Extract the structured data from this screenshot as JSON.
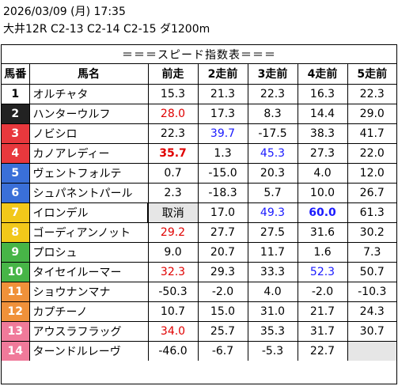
{
  "header": {
    "datetime": "2026/03/09 (月) 17:35",
    "race": "大井12R C2-13 C2-14 C2-15 ダ1200m"
  },
  "table_title": "＝＝＝スピード指数表＝＝＝",
  "columns": [
    "馬番",
    "馬名",
    "前走",
    "2走前",
    "3走前",
    "4走前",
    "5走前"
  ],
  "horses": [
    {
      "no": "1",
      "bg": "#ffffff",
      "fg": "#000000",
      "name": "オルチャタ",
      "vals": [
        {
          "t": "15.3"
        },
        {
          "t": "21.3"
        },
        {
          "t": "22.3"
        },
        {
          "t": "16.3"
        },
        {
          "t": "22.3"
        }
      ]
    },
    {
      "no": "2",
      "bg": "#222222",
      "fg": "#ffffff",
      "name": "ハンターウルフ",
      "vals": [
        {
          "t": "28.0",
          "c": "red"
        },
        {
          "t": "17.3"
        },
        {
          "t": "8.3"
        },
        {
          "t": "14.4"
        },
        {
          "t": "29.0"
        }
      ]
    },
    {
      "no": "3",
      "bg": "#e8383d",
      "fg": "#ffffff",
      "name": "ノビシロ",
      "vals": [
        {
          "t": "22.3"
        },
        {
          "t": "39.7",
          "c": "blue"
        },
        {
          "t": "-17.5"
        },
        {
          "t": "38.3"
        },
        {
          "t": "41.7"
        }
      ]
    },
    {
      "no": "4",
      "bg": "#e8383d",
      "fg": "#ffffff",
      "name": "カノアレディー",
      "vals": [
        {
          "t": "35.7",
          "c": "red",
          "b": true
        },
        {
          "t": "1.3"
        },
        {
          "t": "45.3",
          "c": "blue"
        },
        {
          "t": "27.3"
        },
        {
          "t": "22.0"
        }
      ]
    },
    {
      "no": "5",
      "bg": "#3a6fd8",
      "fg": "#ffffff",
      "name": "ヴェントフォルテ",
      "vals": [
        {
          "t": "0.7"
        },
        {
          "t": "-15.0"
        },
        {
          "t": "20.3"
        },
        {
          "t": "4.0"
        },
        {
          "t": "12.0"
        }
      ]
    },
    {
      "no": "6",
      "bg": "#3a6fd8",
      "fg": "#ffffff",
      "name": "シュパネントパール",
      "vals": [
        {
          "t": "2.3"
        },
        {
          "t": "-18.3"
        },
        {
          "t": "5.7"
        },
        {
          "t": "10.0"
        },
        {
          "t": "26.7"
        }
      ]
    },
    {
      "no": "7",
      "bg": "#f2c81a",
      "fg": "#ffffff",
      "name": "イロンデル",
      "vals": [
        {
          "t": "取消",
          "scratch": true
        },
        {
          "t": "17.0"
        },
        {
          "t": "49.3",
          "c": "blue"
        },
        {
          "t": "60.0",
          "c": "blue",
          "b": true
        },
        {
          "t": "61.3"
        }
      ]
    },
    {
      "no": "8",
      "bg": "#f2c81a",
      "fg": "#ffffff",
      "name": "ゴーディアンノット",
      "vals": [
        {
          "t": "29.2",
          "c": "red"
        },
        {
          "t": "27.7"
        },
        {
          "t": "27.5"
        },
        {
          "t": "31.6"
        },
        {
          "t": "30.2"
        }
      ]
    },
    {
      "no": "9",
      "bg": "#47b547",
      "fg": "#ffffff",
      "name": "プロシュ",
      "vals": [
        {
          "t": "9.0"
        },
        {
          "t": "20.7"
        },
        {
          "t": "11.7"
        },
        {
          "t": "1.6"
        },
        {
          "t": "7.3"
        }
      ]
    },
    {
      "no": "10",
      "bg": "#47b547",
      "fg": "#ffffff",
      "name": "タイセイルーマー",
      "vals": [
        {
          "t": "32.3",
          "c": "red"
        },
        {
          "t": "29.3"
        },
        {
          "t": "33.3"
        },
        {
          "t": "52.3",
          "c": "blue"
        },
        {
          "t": "50.7"
        }
      ]
    },
    {
      "no": "11",
      "bg": "#f0913a",
      "fg": "#ffffff",
      "name": "ショウナンマナ",
      "vals": [
        {
          "t": "-50.3"
        },
        {
          "t": "-2.0"
        },
        {
          "t": "4.0"
        },
        {
          "t": "-2.0"
        },
        {
          "t": "-10.3"
        }
      ]
    },
    {
      "no": "12",
      "bg": "#f0913a",
      "fg": "#ffffff",
      "name": "カプチーノ",
      "vals": [
        {
          "t": "10.7"
        },
        {
          "t": "15.0"
        },
        {
          "t": "31.0"
        },
        {
          "t": "21.7"
        },
        {
          "t": "24.3"
        }
      ]
    },
    {
      "no": "13",
      "bg": "#f07a9a",
      "fg": "#ffffff",
      "name": "アウスラフラッグ",
      "vals": [
        {
          "t": "34.0",
          "c": "red"
        },
        {
          "t": "25.7"
        },
        {
          "t": "35.3"
        },
        {
          "t": "31.7"
        },
        {
          "t": "30.7"
        }
      ]
    },
    {
      "no": "14",
      "bg": "#f07a9a",
      "fg": "#ffffff",
      "name": "ターンドルレーヴ",
      "vals": [
        {
          "t": "-46.0"
        },
        {
          "t": "-6.7"
        },
        {
          "t": "-5.3"
        },
        {
          "t": "22.7"
        },
        {
          "t": "",
          "empty": true
        }
      ]
    }
  ]
}
